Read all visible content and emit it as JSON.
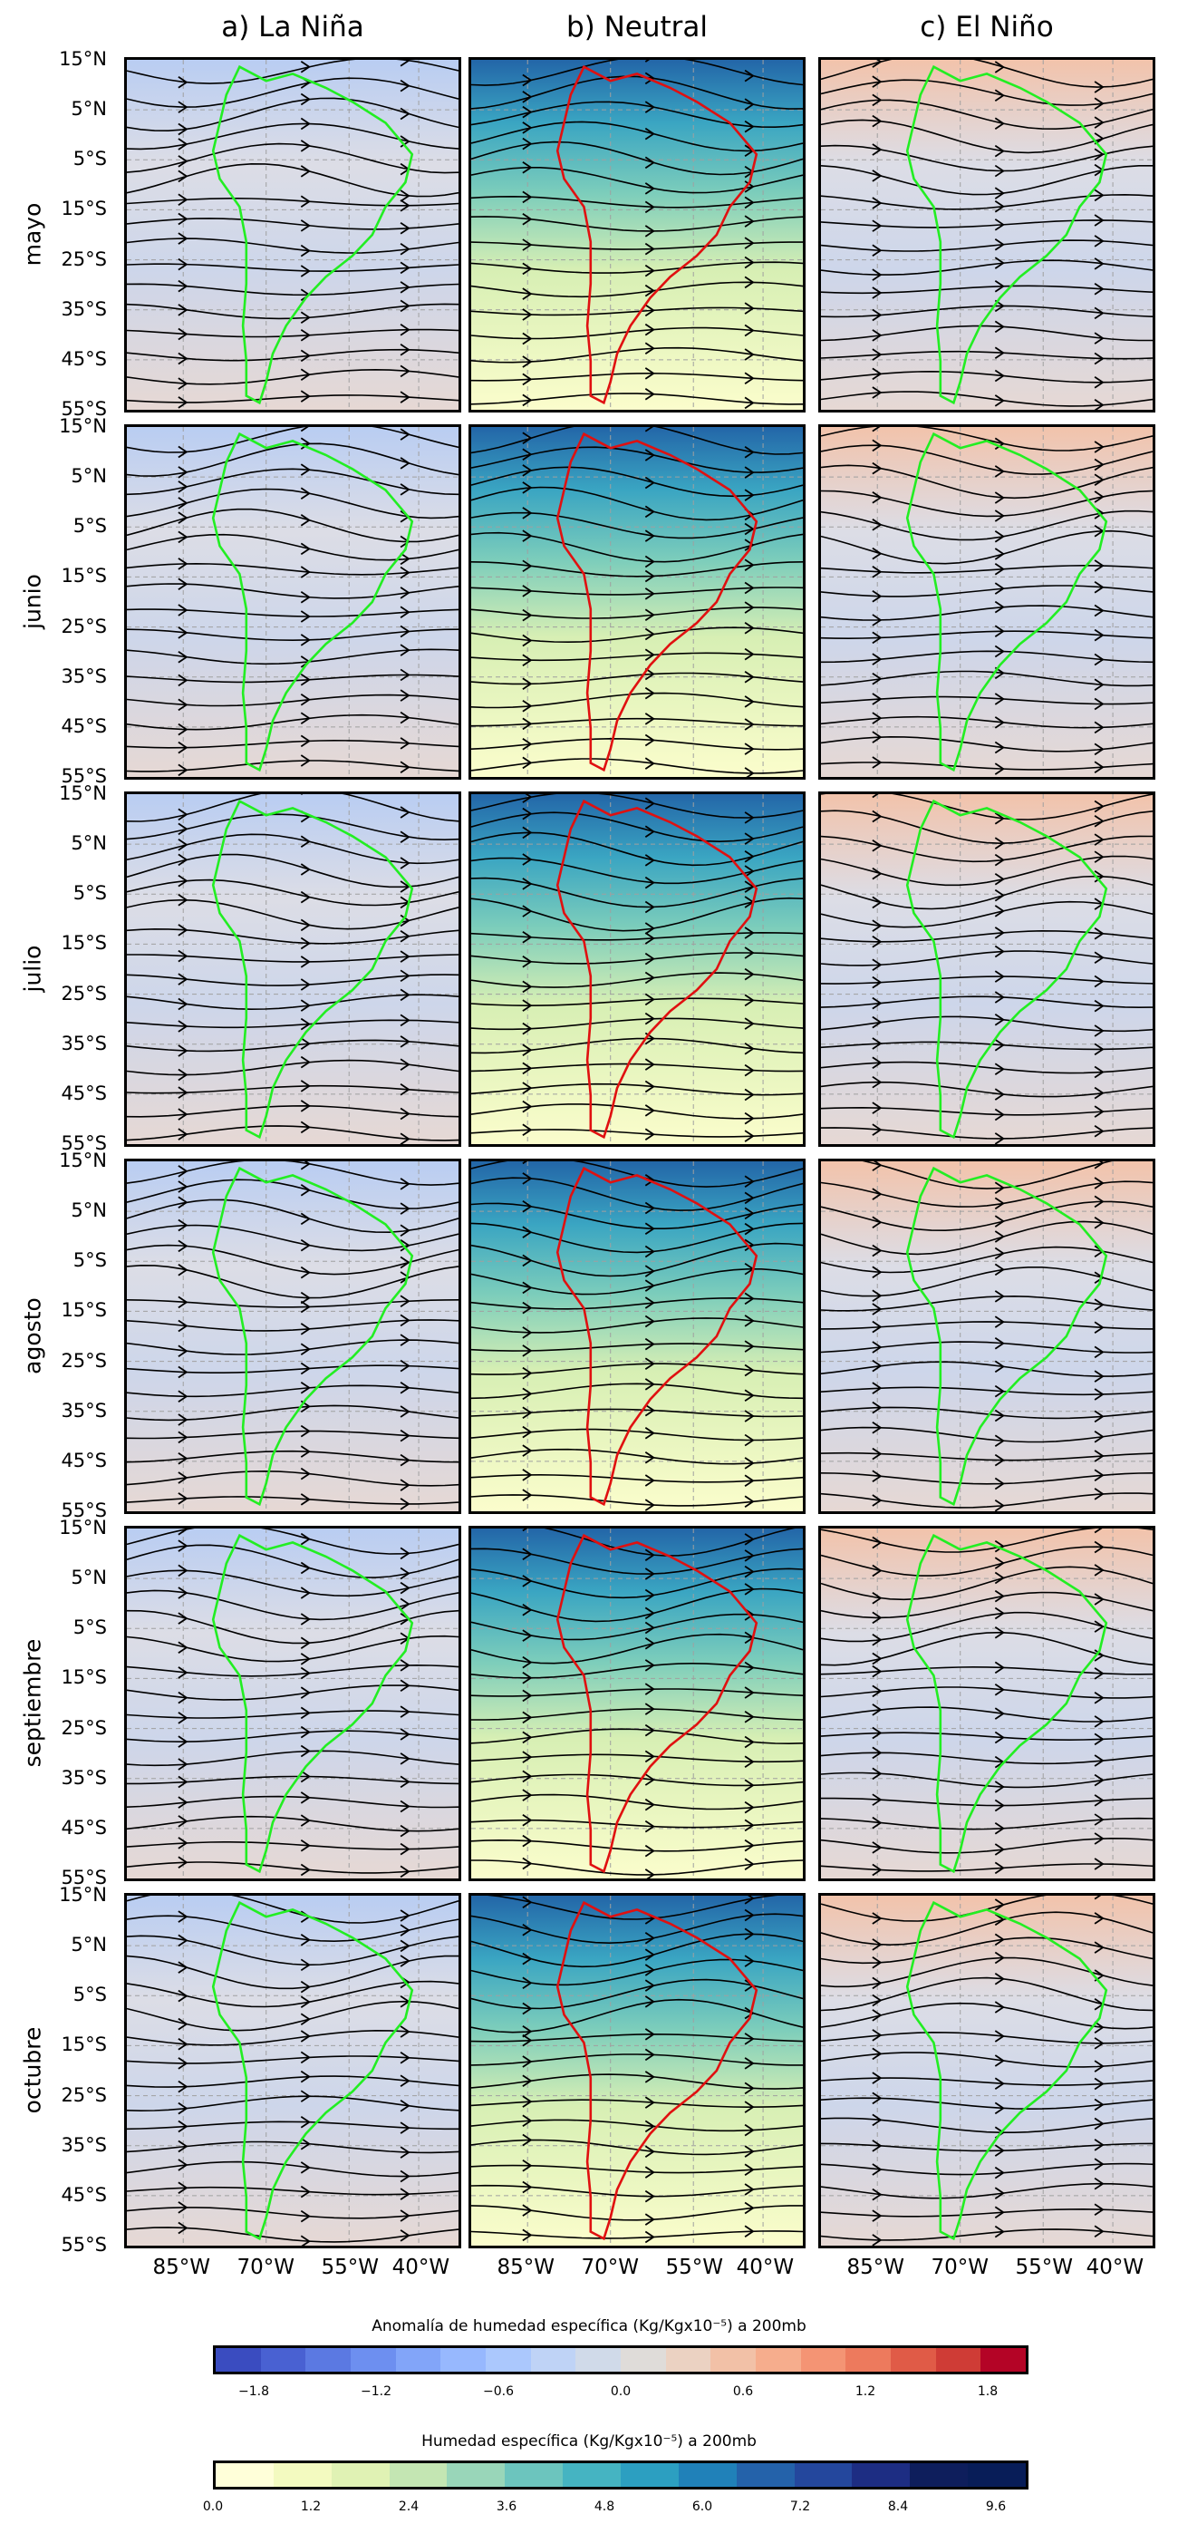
{
  "columns": [
    {
      "title": "a) La Niña",
      "kind": "anom"
    },
    {
      "title": "b) Neutral",
      "kind": "abs"
    },
    {
      "title": "c) El Niño",
      "kind": "anom"
    }
  ],
  "rows": [
    {
      "label": "mayo"
    },
    {
      "label": "junio"
    },
    {
      "label": "julio"
    },
    {
      "label": "agosto"
    },
    {
      "label": "septiembre"
    },
    {
      "label": "octubre"
    }
  ],
  "lat_ticks": [
    "15°N",
    "5°N",
    "5°S",
    "15°S",
    "25°S",
    "35°S",
    "45°S",
    "55°S"
  ],
  "lon_ticks": [
    "85°W",
    "70°W",
    "55°W",
    "40°W"
  ],
  "colorbar_anomaly": {
    "title": "Anomalía de humedad específica (Kg/Kgx10⁻⁵) a 200mb",
    "ticks": [
      "−1.8",
      "−1.2",
      "−0.6",
      "0.0",
      "0.6",
      "1.2",
      "1.8"
    ],
    "colors": [
      "#3a4cc0",
      "#4961d2",
      "#5b79e2",
      "#6d8ff0",
      "#82a5f9",
      "#97b8fe",
      "#abc8fd",
      "#bfd3f6",
      "#d0dae9",
      "#dfdcd9",
      "#ebd2c2",
      "#f2c1a7",
      "#f6ad8d",
      "#f49474",
      "#ed7a5d",
      "#e05b47",
      "#cf3c36",
      "#b40426"
    ]
  },
  "colorbar_specific": {
    "title": "Humedad específica (Kg/Kgx10⁻⁵) a 200mb",
    "ticks": [
      "0.0",
      "1.2",
      "2.4",
      "3.6",
      "4.8",
      "6.0",
      "7.2",
      "8.4",
      "9.6"
    ],
    "colors": [
      "#ffffd9",
      "#f3fac0",
      "#e0f2b4",
      "#c4e6b3",
      "#99d6b9",
      "#6cc5be",
      "#45b4c2",
      "#2c9fc1",
      "#2081b9",
      "#2462aa",
      "#24479d",
      "#1d2d83",
      "#0e1e5c",
      "#081d58"
    ]
  },
  "colors": {
    "coastline_anomaly": "#22ee22",
    "coastline_neutral": "#e01010",
    "streamline": "#000000"
  }
}
